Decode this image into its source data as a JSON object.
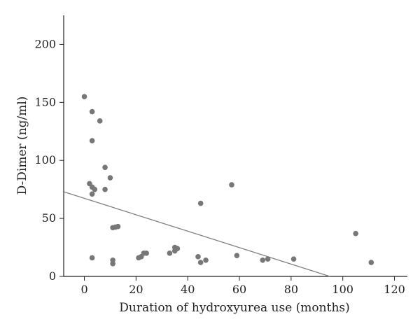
{
  "chart_data": {
    "type": "scatter",
    "title": "",
    "xlabel": "Duration of hydroxyurea use (months)",
    "ylabel": "D-Dimer (ng/ml)",
    "xlim": [
      -8,
      125
    ],
    "ylim": [
      0,
      225
    ],
    "x_ticks": [
      0,
      20,
      40,
      60,
      80,
      100,
      120
    ],
    "y_ticks": [
      0,
      50,
      100,
      150,
      200
    ],
    "grid": false,
    "legend": "none",
    "point_color": "#777777",
    "line_color": "#808080",
    "series": [
      {
        "points": [
          {
            "x": 0,
            "y": 155
          },
          {
            "x": 3,
            "y": 142
          },
          {
            "x": 6,
            "y": 134
          },
          {
            "x": 3,
            "y": 117
          },
          {
            "x": 8,
            "y": 94
          },
          {
            "x": 10,
            "y": 85
          },
          {
            "x": 2,
            "y": 80
          },
          {
            "x": 3,
            "y": 77
          },
          {
            "x": 4,
            "y": 75
          },
          {
            "x": 8,
            "y": 75
          },
          {
            "x": 3,
            "y": 71
          },
          {
            "x": 11,
            "y": 42
          },
          {
            "x": 12,
            "y": 42.5
          },
          {
            "x": 13,
            "y": 43
          },
          {
            "x": 3,
            "y": 16
          },
          {
            "x": 11,
            "y": 14
          },
          {
            "x": 11,
            "y": 11
          },
          {
            "x": 21,
            "y": 16
          },
          {
            "x": 22,
            "y": 17
          },
          {
            "x": 23,
            "y": 20
          },
          {
            "x": 24,
            "y": 20
          },
          {
            "x": 33,
            "y": 20
          },
          {
            "x": 35,
            "y": 22
          },
          {
            "x": 35,
            "y": 25
          },
          {
            "x": 36,
            "y": 24
          },
          {
            "x": 44,
            "y": 17
          },
          {
            "x": 45,
            "y": 12
          },
          {
            "x": 45,
            "y": 63
          },
          {
            "x": 47,
            "y": 14
          },
          {
            "x": 57,
            "y": 79
          },
          {
            "x": 59,
            "y": 18
          },
          {
            "x": 69,
            "y": 14
          },
          {
            "x": 71,
            "y": 15
          },
          {
            "x": 81,
            "y": 15
          },
          {
            "x": 105,
            "y": 37
          },
          {
            "x": 111,
            "y": 12
          }
        ]
      }
    ],
    "trendline": {
      "x": [
        -8,
        95
      ],
      "y": [
        73,
        0
      ]
    }
  }
}
